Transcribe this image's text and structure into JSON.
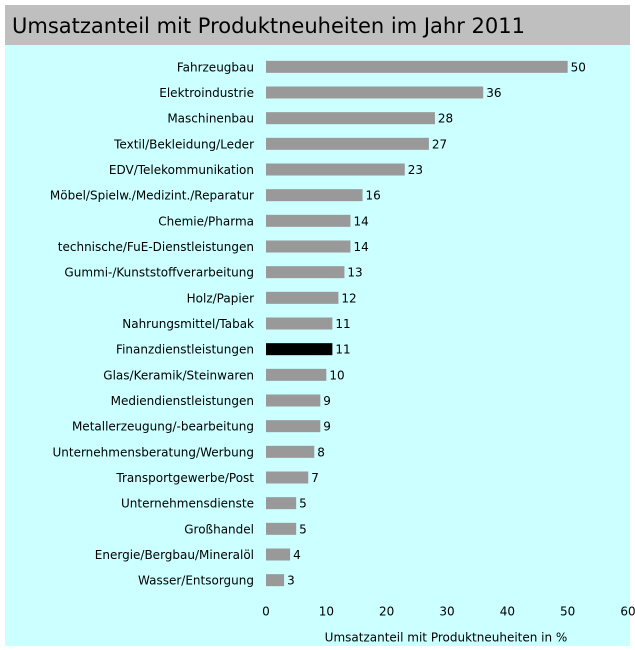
{
  "chart_data": {
    "type": "hbar",
    "title": "Umsatzanteil mit Produktneuheiten im Jahr 2011",
    "x_label": "Umsatzanteil mit Produktneuheiten in %",
    "categories": [
      "Fahrzeugbau",
      "Elektroindustrie",
      "Maschinenbau",
      "Textil/Bekleidung/Leder",
      "EDV/Telekommunikation",
      "Möbel/Spielw./Medizint./Reparatur",
      "Chemie/Pharma",
      "technische/FuE-Dienstleistungen",
      "Gummi-/Kunststoffverarbeitung",
      "Holz/Papier",
      "Nahrungsmittel/Tabak",
      "Finanzdienstleistungen",
      "Glas/Keramik/Steinwaren",
      "Mediendienstleistungen",
      "Metallerzeugung/-bearbeitung",
      "Unternehmensberatung/Werbung",
      "Transportgewerbe/Post",
      "Unternehmensdienste",
      "Großhandel",
      "Energie/Bergbau/Mineralöl",
      "Wasser/Entsorgung"
    ],
    "values": [
      50,
      36,
      28,
      27,
      23,
      16,
      14,
      14,
      13,
      12,
      11,
      11,
      10,
      9,
      9,
      8,
      7,
      5,
      5,
      4,
      3
    ],
    "colors": [
      "#999999",
      "#999999",
      "#999999",
      "#999999",
      "#999999",
      "#999999",
      "#999999",
      "#999999",
      "#999999",
      "#999999",
      "#999999",
      "#000000",
      "#999999",
      "#999999",
      "#999999",
      "#999999",
      "#999999",
      "#999999",
      "#999999",
      "#999999",
      "#999999"
    ],
    "xlim": [
      0,
      60
    ],
    "xticks": [
      0,
      10,
      20,
      30,
      40,
      50,
      60
    ],
    "grid": false
  }
}
